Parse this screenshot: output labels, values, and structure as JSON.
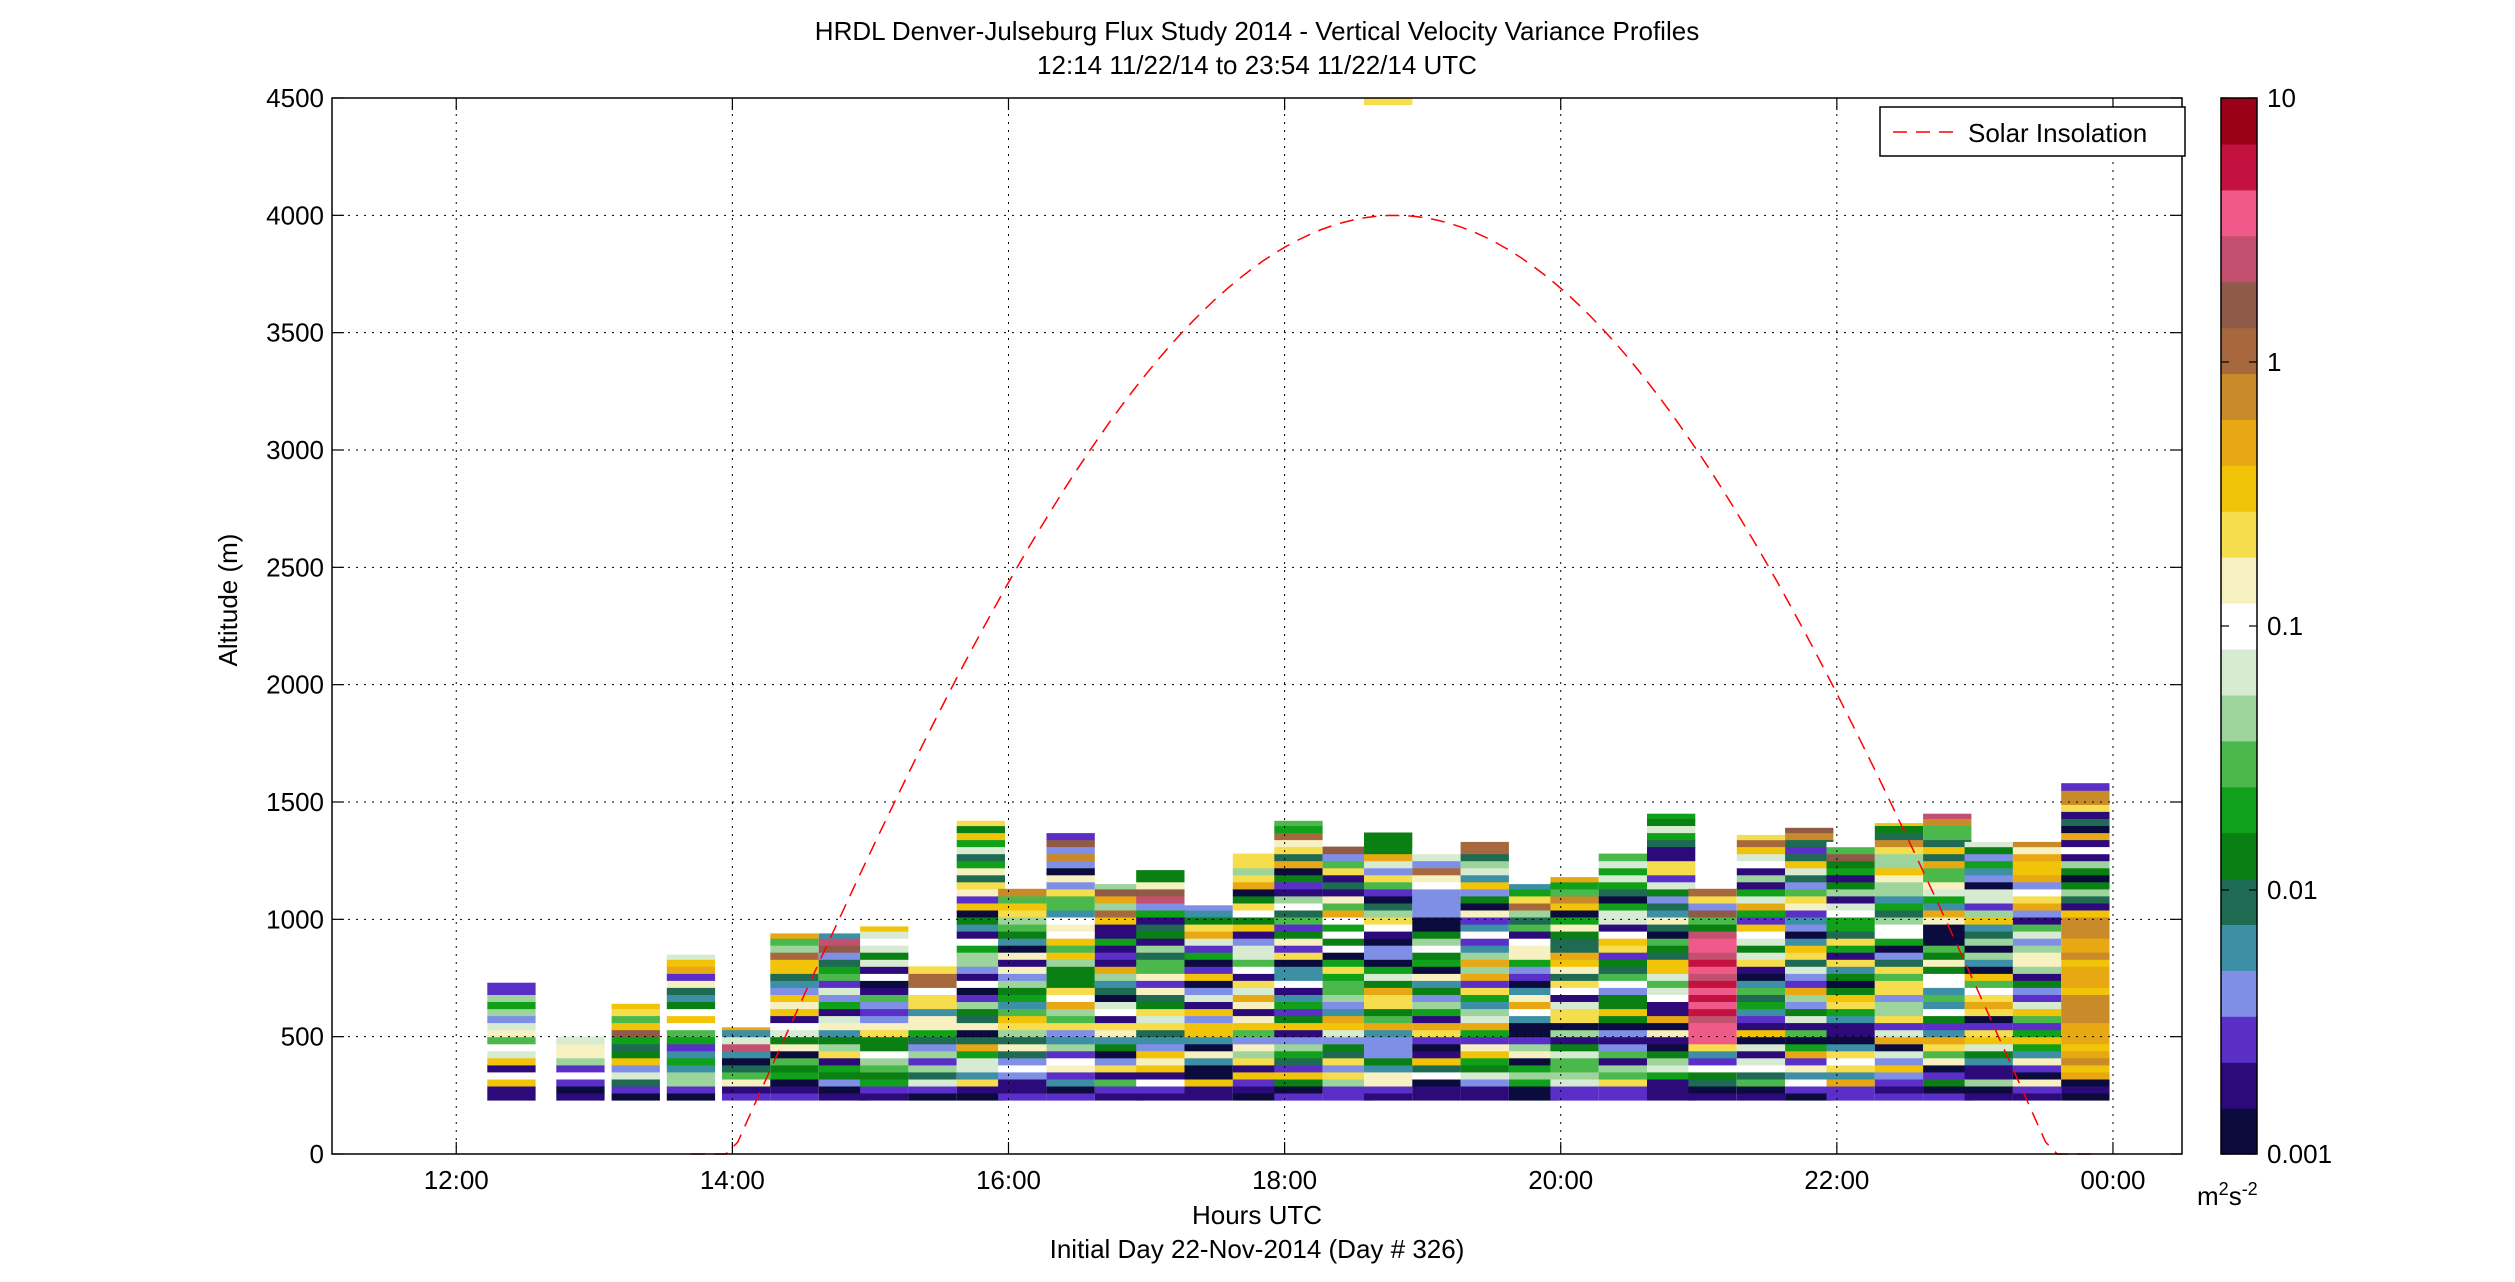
{
  "chart_data": {
    "type": "heatmap",
    "title": "HRDL Denver-Julseburg Flux Study 2014 - Vertical Velocity Variance Profiles",
    "subtitle": "12:14 11/22/14 to 23:54 11/22/14  UTC",
    "xlabel": "Hours UTC",
    "xlabel2": "Initial Day 22-Nov-2014 (Day # 326)",
    "ylabel": "Altitude (m)",
    "xlim": [
      11.1,
      0.5
    ],
    "ylim": [
      0,
      4500
    ],
    "grid": true,
    "x_ticks": [
      {
        "value": 12,
        "label": "12:00"
      },
      {
        "value": 14,
        "label": "14:00"
      },
      {
        "value": 16,
        "label": "16:00"
      },
      {
        "value": 18,
        "label": "18:00"
      },
      {
        "value": 20,
        "label": "20:00"
      },
      {
        "value": 22,
        "label": "22:00"
      },
      {
        "value": 24,
        "label": "00:00"
      }
    ],
    "y_ticks": [
      0,
      500,
      1000,
      1500,
      2000,
      2500,
      3000,
      3500,
      4000,
      4500
    ],
    "y_tick_labels": [
      "0",
      "500",
      "1000",
      "1500",
      "2000",
      "2500",
      "3000",
      "3500",
      "4000",
      "4500"
    ],
    "legend": {
      "placement": "top-right",
      "entries": [
        {
          "name": "Solar Insolation",
          "color": "#ff0000",
          "style": "dashed"
        }
      ]
    },
    "solar_curve": {
      "sunrise_hour": 14.0,
      "sunset_hour": 23.55,
      "peak_hour": 18.8,
      "peak_altitude": 4000
    },
    "colorbar": {
      "scale": "log",
      "range": [
        0.001,
        10
      ],
      "unit": "m",
      "unit_exponent": "2",
      "unit_second": "s",
      "unit_second_exponent": "-2",
      "ticks": [
        {
          "value": 10,
          "label": "10"
        },
        {
          "value": 1,
          "label": "1"
        },
        {
          "value": 0.1,
          "label": "0.1"
        },
        {
          "value": 0.01,
          "label": "0.01"
        },
        {
          "value": 0.001,
          "label": "0.001"
        }
      ],
      "colors": [
        "#0b0b3d",
        "#2d0a7a",
        "#5a2fc8",
        "#7f8fe6",
        "#3c8fa5",
        "#1e6a52",
        "#0a7f14",
        "#11a01a",
        "#4bb84b",
        "#9cd49c",
        "#d7ebd3",
        "#ffffff",
        "#f7f0c0",
        "#f5dd4d",
        "#f1c40a",
        "#e8a813",
        "#c98a2a",
        "#a6683c",
        "#8f5a48",
        "#c2506e",
        "#f05a8a",
        "#c41240",
        "#9a0018"
      ]
    },
    "profile_columns": [
      {
        "time": 12.4,
        "top": 730,
        "seed": 1
      },
      {
        "time": 12.9,
        "top": 500,
        "seed": 2
      },
      {
        "time": 13.3,
        "top": 640,
        "seed": 3
      },
      {
        "time": 13.7,
        "top": 850,
        "seed": 4
      },
      {
        "time": 14.1,
        "top": 540,
        "seed": 5
      },
      {
        "time": 14.45,
        "top": 940,
        "seed": 6
      },
      {
        "time": 14.8,
        "top": 940,
        "seed": 7
      },
      {
        "time": 15.1,
        "top": 970,
        "seed": 8
      },
      {
        "time": 15.45,
        "top": 800,
        "seed": 9
      },
      {
        "time": 15.8,
        "top": 1420,
        "seed": 10
      },
      {
        "time": 16.1,
        "top": 1130,
        "seed": 11
      },
      {
        "time": 16.45,
        "top": 1390,
        "seed": 12
      },
      {
        "time": 16.8,
        "top": 1150,
        "seed": 13
      },
      {
        "time": 17.1,
        "top": 1210,
        "seed": 14
      },
      {
        "time": 17.45,
        "top": 1060,
        "seed": 15
      },
      {
        "time": 17.8,
        "top": 1280,
        "seed": 16
      },
      {
        "time": 18.1,
        "top": 1420,
        "seed": 17
      },
      {
        "time": 18.45,
        "top": 1310,
        "seed": 18
      },
      {
        "time": 18.75,
        "top": 1370,
        "seed": 19
      },
      {
        "time": 19.1,
        "top": 1300,
        "seed": 20
      },
      {
        "time": 19.45,
        "top": 1330,
        "seed": 21
      },
      {
        "time": 19.8,
        "top": 1150,
        "seed": 22
      },
      {
        "time": 20.1,
        "top": 1180,
        "seed": 23
      },
      {
        "time": 20.45,
        "top": 1280,
        "seed": 24
      },
      {
        "time": 20.8,
        "top": 1450,
        "seed": 25
      },
      {
        "time": 21.1,
        "top": 1130,
        "seed": 26
      },
      {
        "time": 21.45,
        "top": 1360,
        "seed": 27
      },
      {
        "time": 21.8,
        "top": 1390,
        "seed": 28
      },
      {
        "time": 22.1,
        "top": 1330,
        "seed": 29
      },
      {
        "time": 22.45,
        "top": 1410,
        "seed": 30
      },
      {
        "time": 22.8,
        "top": 1450,
        "seed": 31
      },
      {
        "time": 23.1,
        "top": 1330,
        "seed": 32
      },
      {
        "time": 23.45,
        "top": 1330,
        "seed": 33
      },
      {
        "time": 23.8,
        "top": 1580,
        "seed": 34
      }
    ],
    "profile_bottom": 230,
    "isolated_cell": {
      "time": 18.75,
      "altitude": 4470,
      "value": 0.2
    }
  }
}
